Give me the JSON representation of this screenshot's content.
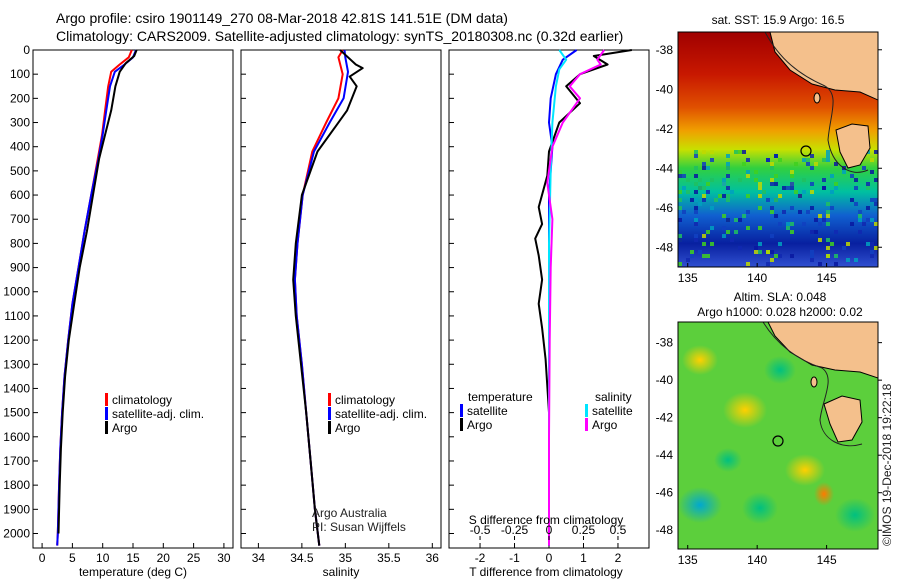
{
  "header": {
    "line1": "Argo profile: csiro 1901149_270 08-Mar-2018 42.81S 141.51E (DM data)",
    "line2": "Climatology: CARS2009. Satellite-adjusted climatology: synTS_20180308.nc (0.32d earlier)"
  },
  "colors": {
    "climatology": "#ff0000",
    "satellite": "#0000ff",
    "argo": "#000000",
    "salinity_satellite": "#00e5ff",
    "salinity_argo": "#ff00ff"
  },
  "chart_data": [
    {
      "type": "line",
      "xlabel": "temperature (deg C)",
      "ylabel": "",
      "xlim": [
        -1.5,
        31.5
      ],
      "ylim": [
        2060,
        0
      ],
      "xticks": [
        "0",
        "5",
        "10",
        "15",
        "20",
        "25",
        "30"
      ],
      "xtick_values": [
        0,
        5,
        10,
        15,
        20,
        25,
        30
      ],
      "yticks": [
        "0",
        "100",
        "200",
        "300",
        "400",
        "500",
        "600",
        "700",
        "800",
        "900",
        "1000",
        "1100",
        "1200",
        "1300",
        "1400",
        "1500",
        "1600",
        "1700",
        "1800",
        "1900",
        "2000"
      ],
      "series": [
        {
          "name": "climatology",
          "color": "#ff0000",
          "points": [
            [
              14.8,
              0
            ],
            [
              14.3,
              30
            ],
            [
              12.8,
              60
            ],
            [
              11.4,
              90
            ],
            [
              10.9,
              150
            ],
            [
              10.4,
              250
            ],
            [
              9.9,
              350
            ],
            [
              9.2,
              450
            ],
            [
              8.1,
              600
            ],
            [
              7.0,
              750
            ],
            [
              6.0,
              900
            ],
            [
              5.0,
              1050
            ],
            [
              4.3,
              1200
            ],
            [
              3.7,
              1350
            ],
            [
              3.3,
              1500
            ],
            [
              3.0,
              1650
            ],
            [
              2.8,
              1800
            ],
            [
              2.6,
              2000
            ],
            [
              2.5,
              2050
            ]
          ]
        },
        {
          "name": "satellite-adj. clim.",
          "color": "#0000ff",
          "points": [
            [
              15.5,
              0
            ],
            [
              15.0,
              30
            ],
            [
              13.6,
              60
            ],
            [
              12.0,
              90
            ],
            [
              11.2,
              150
            ],
            [
              10.6,
              250
            ],
            [
              10.0,
              350
            ],
            [
              9.3,
              450
            ],
            [
              8.1,
              600
            ],
            [
              7.0,
              750
            ],
            [
              6.0,
              900
            ],
            [
              5.0,
              1050
            ],
            [
              4.3,
              1200
            ],
            [
              3.7,
              1350
            ],
            [
              3.3,
              1500
            ],
            [
              3.0,
              1650
            ],
            [
              2.8,
              1800
            ],
            [
              2.6,
              2000
            ],
            [
              2.5,
              2050
            ]
          ]
        },
        {
          "name": "Argo",
          "color": "#000000",
          "points": [
            [
              15.6,
              0
            ],
            [
              15.2,
              25
            ],
            [
              13.8,
              55
            ],
            [
              12.8,
              90
            ],
            [
              12.1,
              150
            ],
            [
              11.4,
              250
            ],
            [
              10.4,
              350
            ],
            [
              9.4,
              450
            ],
            [
              8.4,
              600
            ],
            [
              7.4,
              750
            ],
            [
              6.2,
              900
            ],
            [
              5.3,
              1050
            ],
            [
              4.4,
              1200
            ],
            [
              3.8,
              1350
            ],
            [
              3.4,
              1500
            ],
            [
              3.1,
              1650
            ],
            [
              2.9,
              1800
            ],
            [
              2.7,
              2000
            ]
          ]
        }
      ],
      "legend": [
        "climatology",
        "satellite-adj. clim.",
        "Argo"
      ],
      "legend_position": "bottom-right"
    },
    {
      "type": "line",
      "xlabel": "salinity",
      "ylabel": "",
      "xlim": [
        33.8,
        36.1
      ],
      "ylim": [
        2060,
        0
      ],
      "xticks": [
        "34",
        "34.5",
        "35",
        "35.5",
        "36"
      ],
      "xtick_values": [
        34,
        34.5,
        35,
        35.5,
        36
      ],
      "series": [
        {
          "name": "climatology",
          "color": "#ff0000",
          "points": [
            [
              34.97,
              0
            ],
            [
              34.92,
              30
            ],
            [
              34.97,
              100
            ],
            [
              34.92,
              200
            ],
            [
              34.78,
              300
            ],
            [
              34.62,
              420
            ],
            [
              34.51,
              600
            ],
            [
              34.45,
              800
            ],
            [
              34.42,
              950
            ],
            [
              34.44,
              1100
            ],
            [
              34.5,
              1300
            ],
            [
              34.55,
              1500
            ],
            [
              34.6,
              1700
            ],
            [
              34.65,
              1900
            ],
            [
              34.7,
              2050
            ]
          ]
        },
        {
          "name": "satellite-adj. clim.",
          "color": "#0000ff",
          "points": [
            [
              34.99,
              0
            ],
            [
              35.0,
              30
            ],
            [
              35.03,
              90
            ],
            [
              34.98,
              200
            ],
            [
              34.82,
              300
            ],
            [
              34.64,
              420
            ],
            [
              34.51,
              600
            ],
            [
              34.45,
              800
            ],
            [
              34.42,
              950
            ],
            [
              34.44,
              1100
            ],
            [
              34.5,
              1300
            ],
            [
              34.55,
              1500
            ],
            [
              34.6,
              1700
            ],
            [
              34.65,
              1900
            ],
            [
              34.7,
              2050
            ]
          ]
        },
        {
          "name": "Argo",
          "color": "#000000",
          "points": [
            [
              34.94,
              0
            ],
            [
              35.0,
              20
            ],
            [
              35.12,
              60
            ],
            [
              35.2,
              75
            ],
            [
              35.05,
              110
            ],
            [
              35.13,
              150
            ],
            [
              35.02,
              250
            ],
            [
              34.88,
              320
            ],
            [
              34.68,
              420
            ],
            [
              34.5,
              600
            ],
            [
              34.43,
              800
            ],
            [
              34.4,
              950
            ],
            [
              34.43,
              1100
            ],
            [
              34.49,
              1300
            ],
            [
              34.55,
              1500
            ],
            [
              34.6,
              1700
            ],
            [
              34.65,
              1900
            ],
            [
              34.7,
              2050
            ]
          ]
        }
      ],
      "legend": [
        "climatology",
        "satellite-adj. clim.",
        "Argo"
      ],
      "legend_position": "bottom-right",
      "credit": [
        "Argo Australia",
        "PI: Susan Wijffels"
      ]
    },
    {
      "type": "line",
      "xlabel": "T difference from climatology",
      "top_axis_label": "S difference from climatology",
      "xlim": [
        -2.9,
        2.9
      ],
      "ylim": [
        2060,
        0
      ],
      "xticks": [
        "-2",
        "-1",
        "0",
        "1",
        "2"
      ],
      "xtick_values": [
        -2,
        -1,
        0,
        1,
        2
      ],
      "top_ticks": [
        "-0.5",
        "-0.25",
        "0",
        "0.25",
        "0.5"
      ],
      "series": [
        {
          "name": "temperature satellite",
          "color": "#0000ff",
          "points": [
            [
              0.8,
              0
            ],
            [
              0.4,
              40
            ],
            [
              0.2,
              100
            ],
            [
              0.05,
              200
            ],
            [
              0.0,
              300
            ],
            [
              0.1,
              400
            ],
            [
              0.0,
              600
            ],
            [
              0.0,
              800
            ],
            [
              0.02,
              1000
            ],
            [
              0.0,
              1300
            ],
            [
              0.0,
              1600
            ],
            [
              0.0,
              2050
            ]
          ]
        },
        {
          "name": "temperature Argo",
          "color": "#000000",
          "points": [
            [
              2.4,
              0
            ],
            [
              1.3,
              25
            ],
            [
              1.7,
              60
            ],
            [
              0.9,
              100
            ],
            [
              0.5,
              150
            ],
            [
              0.9,
              220
            ],
            [
              0.3,
              300
            ],
            [
              0.0,
              420
            ],
            [
              -0.05,
              520
            ],
            [
              -0.3,
              650
            ],
            [
              -0.2,
              720
            ],
            [
              -0.4,
              780
            ],
            [
              -0.3,
              850
            ],
            [
              -0.2,
              950
            ],
            [
              -0.3,
              1050
            ],
            [
              -0.2,
              1150
            ],
            [
              -0.1,
              1280
            ],
            [
              0.0,
              1500
            ],
            [
              0.0,
              1800
            ],
            [
              0.0,
              2050
            ]
          ]
        },
        {
          "name": "salinity satellite",
          "color": "#00e5ff",
          "points": [
            [
              0.3,
              0
            ],
            [
              0.5,
              40
            ],
            [
              0.3,
              80
            ],
            [
              0.2,
              150
            ],
            [
              0.1,
              300
            ],
            [
              0.05,
              500
            ],
            [
              0.0,
              800
            ],
            [
              0.0,
              1200
            ],
            [
              0.0,
              1600
            ],
            [
              0.0,
              2050
            ]
          ]
        },
        {
          "name": "salinity Argo",
          "color": "#ff00ff",
          "points": [
            [
              1.6,
              0
            ],
            [
              1.4,
              40
            ],
            [
              1.5,
              60
            ],
            [
              0.9,
              100
            ],
            [
              0.6,
              150
            ],
            [
              0.9,
              200
            ],
            [
              0.4,
              300
            ],
            [
              0.1,
              400
            ],
            [
              -0.05,
              550
            ],
            [
              0.1,
              700
            ],
            [
              0.05,
              900
            ],
            [
              0.02,
              1200
            ],
            [
              0.0,
              1600
            ],
            [
              0.0,
              2050
            ]
          ]
        }
      ],
      "legend": {
        "temperature": "temperature",
        "salinity": "salinity",
        "satellite": "satellite",
        "argo": "Argo"
      },
      "legend_position": "bottom"
    }
  ],
  "maps": {
    "top": {
      "title": "sat. SST: 15.9 Argo: 16.5",
      "yticks": [
        "-38",
        "-40",
        "-42",
        "-44",
        "-46",
        "-48"
      ],
      "xticks": [
        "135",
        "140",
        "145"
      ]
    },
    "bottom": {
      "title1": "Altim. SLA: 0.048",
      "title2": "Argo h1000: 0.028 h2000: 0.02",
      "yticks": [
        "-38",
        "-40",
        "-42",
        "-44",
        "-46",
        "-48"
      ],
      "xticks": [
        "135",
        "140",
        "145"
      ],
      "credit": "©IMOS 19-Dec-2018 19:22:18"
    }
  }
}
